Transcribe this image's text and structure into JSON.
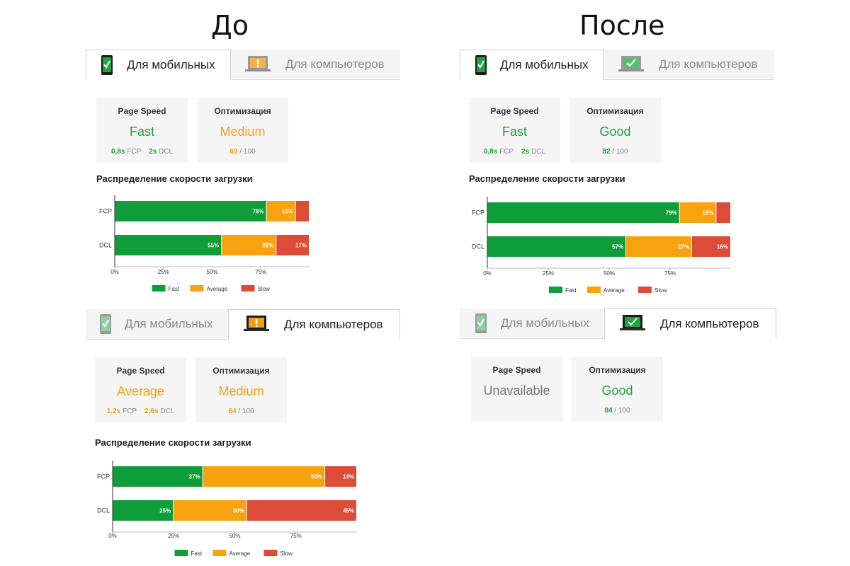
{
  "titles": {
    "before": "До",
    "after": "После"
  },
  "colors": {
    "fast": "#0f9d3a",
    "average": "#f8a20f",
    "slow": "#dd4b39",
    "green_text": "#1e9e3a",
    "orange_text": "#f29f12"
  },
  "tab_labels": {
    "mobile": "Для мобильных",
    "desktop": "Для компьютеров"
  },
  "panels": [
    {
      "id": "before-mobile",
      "active_tab": "mobile",
      "mobile_tab_icon": "phone-check-icon",
      "desktop_tab_icon": "laptop-warning-icon",
      "page_speed": {
        "title": "Page Speed",
        "value": "Fast",
        "status": "green",
        "fcp": "0,8s",
        "fcp_label": "FCP",
        "dcl": "2s",
        "dcl_label": "DCL"
      },
      "optimization": {
        "title": "Оптимизация",
        "value": "Medium",
        "status": "orange",
        "score": "69",
        "max": "/ 100"
      },
      "distribution_title": "Распределение скорости загрузки"
    },
    {
      "id": "after-mobile",
      "active_tab": "mobile",
      "mobile_tab_icon": "phone-check-icon",
      "desktop_tab_icon": "laptop-check-icon",
      "page_speed": {
        "title": "Page Speed",
        "value": "Fast",
        "status": "green",
        "fcp": "0,8s",
        "fcp_label": "FCP",
        "dcl": "2s",
        "dcl_label": "DCL"
      },
      "optimization": {
        "title": "Оптимизация",
        "value": "Good",
        "status": "green",
        "score": "82",
        "max": "/ 100"
      },
      "distribution_title": "Распределение скорости загрузки"
    },
    {
      "id": "before-desktop",
      "active_tab": "desktop",
      "mobile_tab_icon": "phone-check-icon",
      "desktop_tab_icon": "laptop-warning-icon",
      "page_speed": {
        "title": "Page Speed",
        "value": "Average",
        "status": "orange",
        "fcp": "1,2s",
        "fcp_label": "FCP",
        "dcl": "2,6s",
        "dcl_label": "DCL"
      },
      "optimization": {
        "title": "Оптимизация",
        "value": "Medium",
        "status": "orange",
        "score": "64",
        "max": "/ 100"
      },
      "distribution_title": "Распределение скорости загрузки"
    },
    {
      "id": "after-desktop",
      "active_tab": "desktop",
      "mobile_tab_icon": "phone-check-icon",
      "desktop_tab_icon": "laptop-check-icon",
      "page_speed": {
        "title": "Page Speed",
        "value": "Unavailable",
        "status": "gray"
      },
      "optimization": {
        "title": "Оптимизация",
        "value": "Good",
        "status": "green",
        "score": "84",
        "max": "/ 100"
      },
      "distribution_title": ""
    }
  ],
  "chart_data": [
    {
      "panel": "before-mobile",
      "type": "bar",
      "orientation": "horizontal",
      "stacked": true,
      "categories": [
        "FCP",
        "DCL"
      ],
      "series": [
        {
          "name": "Fast",
          "values": [
            78,
            55
          ],
          "labels": [
            "78%",
            "55%"
          ]
        },
        {
          "name": "Average",
          "values": [
            15,
            28
          ],
          "labels": [
            "15%",
            "28%"
          ]
        },
        {
          "name": "Slow",
          "values": [
            7,
            17
          ],
          "labels": [
            "",
            "17%"
          ]
        }
      ],
      "x_ticks": [
        "0%",
        "25%",
        "50%",
        "75%"
      ],
      "xlim": [
        0,
        100
      ],
      "legend": "bottom"
    },
    {
      "panel": "after-mobile",
      "type": "bar",
      "orientation": "horizontal",
      "stacked": true,
      "categories": [
        "FCP",
        "DCL"
      ],
      "series": [
        {
          "name": "Fast",
          "values": [
            79,
            57
          ],
          "labels": [
            "79%",
            "57%"
          ]
        },
        {
          "name": "Average",
          "values": [
            15,
            27
          ],
          "labels": [
            "15%",
            "27%"
          ]
        },
        {
          "name": "Slow",
          "values": [
            6,
            16
          ],
          "labels": [
            "",
            "16%"
          ]
        }
      ],
      "x_ticks": [
        "0%",
        "25%",
        "50%",
        "75%"
      ],
      "xlim": [
        0,
        100
      ],
      "legend": "bottom"
    },
    {
      "panel": "before-desktop",
      "type": "bar",
      "orientation": "horizontal",
      "stacked": true,
      "categories": [
        "FCP",
        "DCL"
      ],
      "series": [
        {
          "name": "Fast",
          "values": [
            37,
            25
          ],
          "labels": [
            "37%",
            "25%"
          ]
        },
        {
          "name": "Average",
          "values": [
            50,
            30
          ],
          "labels": [
            "50%",
            "30%"
          ]
        },
        {
          "name": "Slow",
          "values": [
            13,
            45
          ],
          "labels": [
            "13%",
            "45%"
          ]
        }
      ],
      "x_ticks": [
        "0%",
        "25%",
        "50%",
        "75%"
      ],
      "xlim": [
        0,
        100
      ],
      "legend": "bottom"
    }
  ]
}
